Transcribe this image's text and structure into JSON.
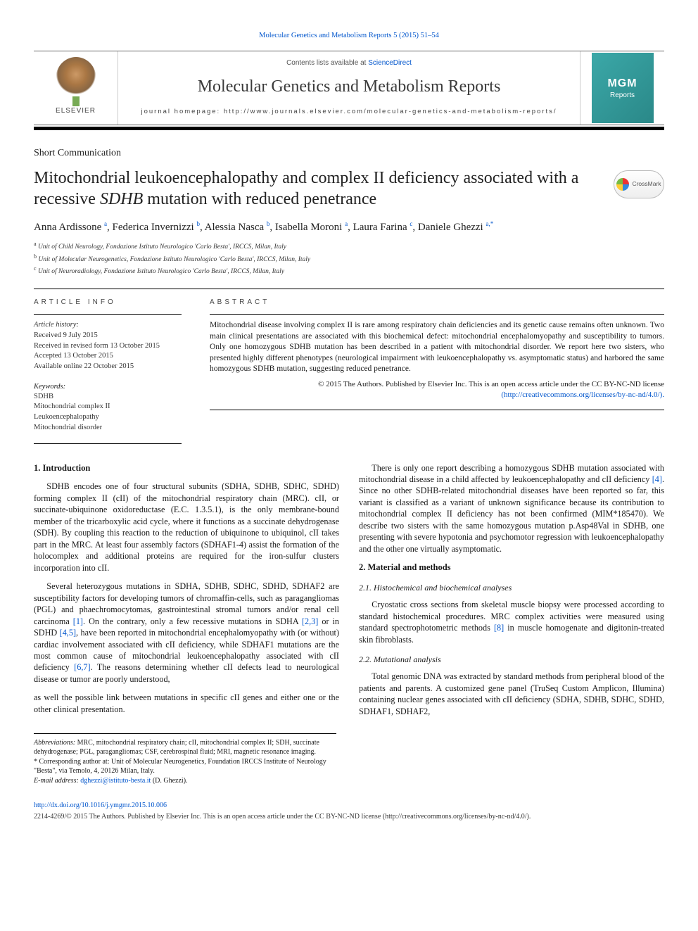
{
  "top_link": "Molecular Genetics and Metabolism Reports 5 (2015) 51–54",
  "masthead": {
    "contents_prefix": "Contents lists available at ",
    "contents_link": "ScienceDirect",
    "journal_title": "Molecular Genetics and Metabolism Reports",
    "homepage_prefix": "journal homepage: ",
    "homepage_url": "http://www.journals.elsevier.com/molecular-genetics-and-metabolism-reports/",
    "publisher": "ELSEVIER",
    "cover_line1": "MGM",
    "cover_line2": "Reports"
  },
  "article_type": "Short Communication",
  "title_pre": "Mitochondrial leukoencephalopathy and complex II deficiency associated with a recessive ",
  "title_ital": "SDHB",
  "title_post": " mutation with reduced penetrance",
  "crossmark": "CrossMark",
  "authors_html": "Anna Ardissone <sup>a</sup>, Federica Invernizzi <sup>b</sup>, Alessia Nasca <sup>b</sup>, Isabella Moroni <sup>a</sup>, Laura Farina <sup>c</sup>, Daniele Ghezzi <sup>a,*</sup>",
  "affils": {
    "a": "Unit of Child Neurology, Fondazione Istituto Neurologico 'Carlo Besta', IRCCS, Milan, Italy",
    "b": "Unit of Molecular Neurogenetics, Fondazione Istituto Neurologico 'Carlo Besta', IRCCS, Milan, Italy",
    "c": "Unit of Neuroradiology, Fondazione Istituto Neurologico 'Carlo Besta', IRCCS, Milan, Italy"
  },
  "article_info_head": "ARTICLE INFO",
  "abstract_head": "ABSTRACT",
  "history_label": "Article history:",
  "history": {
    "received": "Received 9 July 2015",
    "revised": "Received in revised form 13 October 2015",
    "accepted": "Accepted 13 October 2015",
    "online": "Available online 22 October 2015"
  },
  "keywords_label": "Keywords:",
  "keywords": [
    "SDHB",
    "Mitochondrial complex II",
    "Leukoencephalopathy",
    "Mitochondrial disorder"
  ],
  "abstract": "Mitochondrial disease involving complex II is rare among respiratory chain deficiencies and its genetic cause remains often unknown. Two main clinical presentations are associated with this biochemical defect: mitochondrial encephalomyopathy and susceptibility to tumors. Only one homozygous SDHB mutation has been described in a patient with mitochondrial disorder. We report here two sisters, who presented highly different phenotypes (neurological impairment with leukoencephalopathy vs. asymptomatic status) and harbored the same homozygous SDHB mutation, suggesting reduced penetrance.",
  "license": {
    "line1": "© 2015 The Authors. Published by Elsevier Inc. This is an open access article under the CC BY-NC-ND license",
    "url_text": "(http://creativecommons.org/licenses/by-nc-nd/4.0/)."
  },
  "sections": {
    "intro_head": "1. Introduction",
    "intro_p1": "SDHB encodes one of four structural subunits (SDHA, SDHB, SDHC, SDHD) forming complex II (cII) of the mitochondrial respiratory chain (MRC). cII, or succinate-ubiquinone oxidoreductase (E.C. 1.3.5.1), is the only membrane-bound member of the tricarboxylic acid cycle, where it functions as a succinate dehydrogenase (SDH). By coupling this reaction to the reduction of ubiquinone to ubiquinol, cII takes part in the MRC. At least four assembly factors (SDHAF1-4) assist the formation of the holocomplex and additional proteins are required for the iron-sulfur clusters incorporation into cII.",
    "intro_p2_a": "Several heterozygous mutations in SDHA, SDHB, SDHC, SDHD, SDHAF2 are susceptibility factors for developing tumors of chromaffin-cells, such as paragangliomas (PGL) and phaechromocytomas, gastrointestinal stromal tumors and/or renal cell carcinoma ",
    "intro_p2_cite1": "[1]",
    "intro_p2_b": ". On the contrary, only a few recessive mutations in SDHA ",
    "intro_p2_cite2": "[2,3]",
    "intro_p2_c": " or in SDHD ",
    "intro_p2_cite3": "[4,5]",
    "intro_p2_d": ", have been reported in mitochondrial encephalomyopathy with (or without) cardiac involvement associated with cII deficiency, while SDHAF1 mutations are the most common cause of mitochondrial leukoencephalopathy associated with cII deficiency ",
    "intro_p2_cite4": "[6,7]",
    "intro_p2_e": ". The reasons determining whether cII defects lead to neurological disease or tumor are poorly understood,",
    "intro_p3": "as well the possible link between mutations in specific cII genes and either one or the other clinical presentation.",
    "intro_p4_a": "There is only one report describing a homozygous SDHB mutation associated with mitochondrial disease in a child affected by leukoencephalopathy and cII deficiency ",
    "intro_p4_cite": "[4]",
    "intro_p4_b": ". Since no other SDHB-related mitochondrial diseases have been reported so far, this variant is classified as a variant of unknown significance because its contribution to mitochondrial complex II deficiency has not been confirmed (MIM*185470). We describe two sisters with the same homozygous mutation p.Asp48Val in SDHB, one presenting with severe hypotonia and psychomotor regression with leukoencephalopathy and the other one virtually asymptomatic.",
    "mm_head": "2. Material and methods",
    "mm_21_head": "2.1. Histochemical and biochemical analyses",
    "mm_21_p_a": "Cryostatic cross sections from skeletal muscle biopsy were processed according to standard histochemical procedures. MRC complex activities were measured using standard spectrophotometric methods ",
    "mm_21_cite": "[8]",
    "mm_21_p_b": " in muscle homogenate and digitonin-treated skin fibroblasts.",
    "mm_22_head": "2.2. Mutational analysis",
    "mm_22_p": "Total genomic DNA was extracted by standard methods from peripheral blood of the patients and parents. A customized gene panel (TruSeq Custom Amplicon, Illumina) containing nuclear genes associated with cII deficiency (SDHA, SDHB, SDHC, SDHD, SDHAF1, SDHAF2,"
  },
  "footnotes": {
    "abbrev_label": "Abbreviations:",
    "abbrev": " MRC, mitochondrial respiratory chain; cII, mitochondrial complex II; SDH, succinate dehydrogenase; PGL, paragangliomas; CSF, cerebrospinal fluid; MRI, magnetic resonance imaging.",
    "corr": "* Corresponding author at: Unit of Molecular Neurogenetics, Foundation IRCCS Institute of Neurology \"Besta\", via Temolo, 4, 20126 Milan, Italy.",
    "email_label": "E-mail address: ",
    "email": "dghezzi@istituto-besta.it",
    "email_who": " (D. Ghezzi)."
  },
  "footer": {
    "doi": "http://dx.doi.org/10.1016/j.ymgmr.2015.10.006",
    "copyright": "2214-4269/© 2015 The Authors. Published by Elsevier Inc. This is an open access article under the CC BY-NC-ND license (http://creativecommons.org/licenses/by-nc-nd/4.0/)."
  },
  "colors": {
    "link": "#0055cc",
    "text": "#1a1a1a",
    "rule": "#000000",
    "cover_bg": "#3ba8a8"
  }
}
